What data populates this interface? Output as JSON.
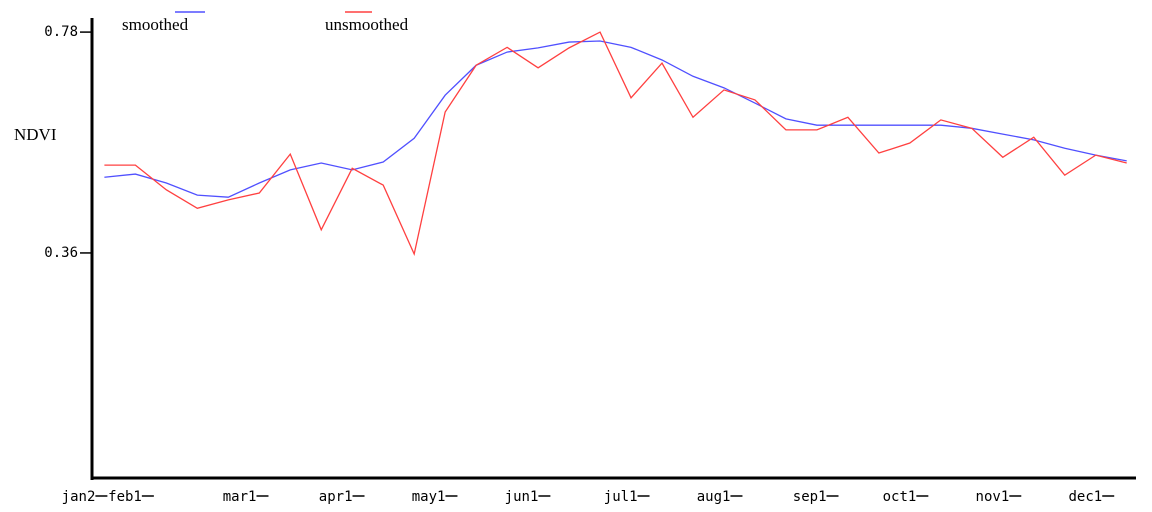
{
  "chart_data": {
    "type": "line",
    "y_label": "NDVI",
    "x": [
      0,
      1,
      2,
      3,
      4,
      5,
      6,
      7,
      8,
      9,
      10,
      11,
      12,
      13,
      14,
      15,
      16,
      17,
      18,
      19,
      20,
      21,
      22,
      23,
      24,
      25,
      26,
      27,
      28,
      29,
      30,
      31,
      32,
      33
    ],
    "series": [
      {
        "name": "smoothed",
        "color": "#5050ff",
        "values": [
          0.504,
          0.51,
          0.493,
          0.47,
          0.466,
          0.493,
          0.518,
          0.531,
          0.518,
          0.533,
          0.578,
          0.66,
          0.717,
          0.742,
          0.75,
          0.761,
          0.763,
          0.751,
          0.727,
          0.696,
          0.674,
          0.645,
          0.615,
          0.603,
          0.603,
          0.603,
          0.603,
          0.603,
          0.597,
          0.586,
          0.575,
          0.559,
          0.546,
          0.535
        ]
      },
      {
        "name": "unsmoothed",
        "color": "#ff4040",
        "values": [
          0.527,
          0.527,
          0.48,
          0.445,
          0.461,
          0.474,
          0.548,
          0.404,
          0.521,
          0.489,
          0.358,
          0.628,
          0.717,
          0.751,
          0.712,
          0.75,
          0.78,
          0.655,
          0.721,
          0.618,
          0.67,
          0.651,
          0.594,
          0.594,
          0.618,
          0.55,
          0.569,
          0.613,
          0.597,
          0.542,
          0.58,
          0.508,
          0.546,
          0.531
        ]
      }
    ],
    "xlim": [
      -0.4,
      33.3
    ],
    "xticks": [
      {
        "value": 0,
        "label": "jan2"
      },
      {
        "value": 1.5,
        "label": "feb1"
      },
      {
        "value": 5.2,
        "label": "mar1"
      },
      {
        "value": 8.3,
        "label": "apr1"
      },
      {
        "value": 11.3,
        "label": "may1"
      },
      {
        "value": 14.3,
        "label": "jun1"
      },
      {
        "value": 17.5,
        "label": "jul1"
      },
      {
        "value": 20.5,
        "label": "aug1"
      },
      {
        "value": 23.6,
        "label": "sep1"
      },
      {
        "value": 26.5,
        "label": "oct1"
      },
      {
        "value": 29.5,
        "label": "nov1"
      },
      {
        "value": 32.5,
        "label": "dec1"
      }
    ],
    "ylim": [
      -0.068,
      0.803
    ],
    "yticks": [
      0.36,
      0.78
    ]
  }
}
